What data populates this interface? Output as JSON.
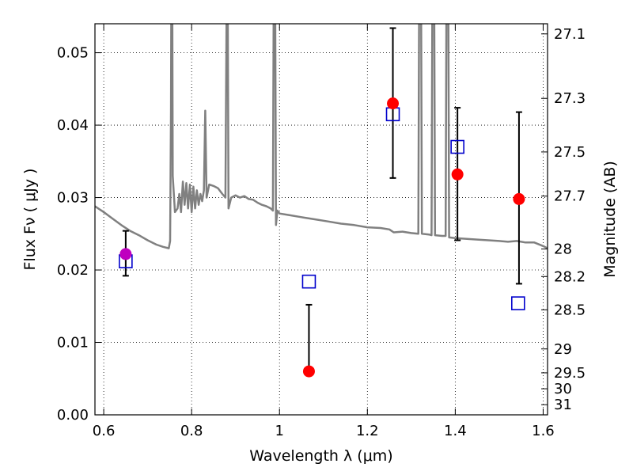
{
  "chart_data": {
    "type": "scatter",
    "xlabel": "Wavelength  λ (μm)",
    "ylabel": "Flux  Fν  ( μJy )",
    "y2label": "Magnitude (AB)",
    "xlim": [
      0.58,
      1.61
    ],
    "ylim": [
      0.0,
      0.054
    ],
    "grid": true,
    "x_ticks": [
      {
        "value": 0.6,
        "label": "0.6"
      },
      {
        "value": 0.8,
        "label": "0.8"
      },
      {
        "value": 1.0,
        "label": "1"
      },
      {
        "value": 1.2,
        "label": "1.2"
      },
      {
        "value": 1.4,
        "label": "1.4"
      },
      {
        "value": 1.6,
        "label": "1.6"
      }
    ],
    "y_ticks": [
      {
        "value": 0.0,
        "label": "0.00"
      },
      {
        "value": 0.01,
        "label": "0.01"
      },
      {
        "value": 0.02,
        "label": "0.02"
      },
      {
        "value": 0.03,
        "label": "0.03"
      },
      {
        "value": 0.04,
        "label": "0.04"
      },
      {
        "value": 0.05,
        "label": "0.05"
      }
    ],
    "y2_ticks": [
      {
        "label": "27.1",
        "flux": 0.0526
      },
      {
        "label": "27.3",
        "flux": 0.0437
      },
      {
        "label": "27.5",
        "flux": 0.0363
      },
      {
        "label": "27.7",
        "flux": 0.0302
      },
      {
        "label": "28",
        "flux": 0.0229
      },
      {
        "label": "28.2",
        "flux": 0.0191
      },
      {
        "label": "28.5",
        "flux": 0.0145
      },
      {
        "label": "29",
        "flux": 0.0091
      },
      {
        "label": "29.5",
        "flux": 0.0058
      },
      {
        "label": "30",
        "flux": 0.0036
      },
      {
        "label": "31",
        "flux": 0.0014
      }
    ],
    "observed": [
      {
        "x": 1.067,
        "y": 0.006,
        "yerr_low": 0.006,
        "yerr_high": 0.0152
      },
      {
        "x": 1.258,
        "y": 0.043,
        "yerr_low": 0.0327,
        "yerr_high": 0.0534
      },
      {
        "x": 1.405,
        "y": 0.0332,
        "yerr_low": 0.0241,
        "yerr_high": 0.0424
      },
      {
        "x": 1.545,
        "y": 0.0298,
        "yerr_low": 0.0181,
        "yerr_high": 0.0418
      }
    ],
    "observed_color": "#ff0000",
    "magenta_point": {
      "x": 0.65,
      "y": 0.0222,
      "yerr_low": 0.0192,
      "yerr_high": 0.0254
    },
    "magenta_color": "#bf00bf",
    "model_points": [
      {
        "x": 0.65,
        "y": 0.0212
      },
      {
        "x": 1.067,
        "y": 0.0184
      },
      {
        "x": 1.258,
        "y": 0.0415
      },
      {
        "x": 1.405,
        "y": 0.037
      },
      {
        "x": 1.543,
        "y": 0.0154
      }
    ],
    "model_color": "#0000cc",
    "sed_color": "#808080",
    "sed": [
      [
        0.58,
        0.0288
      ],
      [
        0.6,
        0.028
      ],
      [
        0.62,
        0.0271
      ],
      [
        0.64,
        0.0262
      ],
      [
        0.66,
        0.0254
      ],
      [
        0.68,
        0.0248
      ],
      [
        0.7,
        0.0241
      ],
      [
        0.72,
        0.0235
      ],
      [
        0.735,
        0.0232
      ],
      [
        0.748,
        0.023
      ],
      [
        0.751,
        0.024
      ],
      [
        0.753,
        0.042
      ],
      [
        0.754,
        0.06
      ],
      [
        0.756,
        0.06
      ],
      [
        0.757,
        0.033
      ],
      [
        0.762,
        0.028
      ],
      [
        0.768,
        0.0285
      ],
      [
        0.772,
        0.0305
      ],
      [
        0.776,
        0.028
      ],
      [
        0.78,
        0.0322
      ],
      [
        0.784,
        0.029
      ],
      [
        0.788,
        0.032
      ],
      [
        0.792,
        0.0285
      ],
      [
        0.796,
        0.0318
      ],
      [
        0.8,
        0.028
      ],
      [
        0.804,
        0.0315
      ],
      [
        0.808,
        0.0285
      ],
      [
        0.812,
        0.031
      ],
      [
        0.816,
        0.029
      ],
      [
        0.82,
        0.0305
      ],
      [
        0.824,
        0.0295
      ],
      [
        0.828,
        0.031
      ],
      [
        0.831,
        0.042
      ],
      [
        0.834,
        0.03
      ],
      [
        0.84,
        0.0318
      ],
      [
        0.85,
        0.0316
      ],
      [
        0.86,
        0.0313
      ],
      [
        0.87,
        0.0305
      ],
      [
        0.877,
        0.03
      ],
      [
        0.88,
        0.06
      ],
      [
        0.882,
        0.06
      ],
      [
        0.884,
        0.0285
      ],
      [
        0.89,
        0.03
      ],
      [
        0.9,
        0.0303
      ],
      [
        0.91,
        0.03
      ],
      [
        0.92,
        0.0302
      ],
      [
        0.93,
        0.0298
      ],
      [
        0.94,
        0.0297
      ],
      [
        0.95,
        0.0293
      ],
      [
        0.96,
        0.029
      ],
      [
        0.97,
        0.0288
      ],
      [
        0.98,
        0.0285
      ],
      [
        0.985,
        0.0282
      ],
      [
        0.987,
        0.06
      ],
      [
        0.99,
        0.06
      ],
      [
        0.992,
        0.0262
      ],
      [
        0.995,
        0.0282
      ],
      [
        1.0,
        0.0278
      ],
      [
        1.02,
        0.0276
      ],
      [
        1.05,
        0.0273
      ],
      [
        1.08,
        0.027
      ],
      [
        1.11,
        0.0267
      ],
      [
        1.14,
        0.0264
      ],
      [
        1.17,
        0.0262
      ],
      [
        1.2,
        0.0259
      ],
      [
        1.23,
        0.0258
      ],
      [
        1.25,
        0.0256
      ],
      [
        1.26,
        0.0252
      ],
      [
        1.28,
        0.0253
      ],
      [
        1.3,
        0.0251
      ],
      [
        1.316,
        0.025
      ],
      [
        1.318,
        0.06
      ],
      [
        1.322,
        0.06
      ],
      [
        1.324,
        0.025
      ],
      [
        1.34,
        0.0249
      ],
      [
        1.346,
        0.0248
      ],
      [
        1.348,
        0.06
      ],
      [
        1.352,
        0.06
      ],
      [
        1.354,
        0.0248
      ],
      [
        1.37,
        0.0247
      ],
      [
        1.378,
        0.0247
      ],
      [
        1.38,
        0.06
      ],
      [
        1.384,
        0.06
      ],
      [
        1.386,
        0.0245
      ],
      [
        1.4,
        0.0244
      ],
      [
        1.45,
        0.0242
      ],
      [
        1.5,
        0.024
      ],
      [
        1.52,
        0.0239
      ],
      [
        1.54,
        0.024
      ],
      [
        1.56,
        0.0238
      ],
      [
        1.58,
        0.0238
      ],
      [
        1.6,
        0.0233
      ],
      [
        1.61,
        0.023
      ]
    ]
  }
}
